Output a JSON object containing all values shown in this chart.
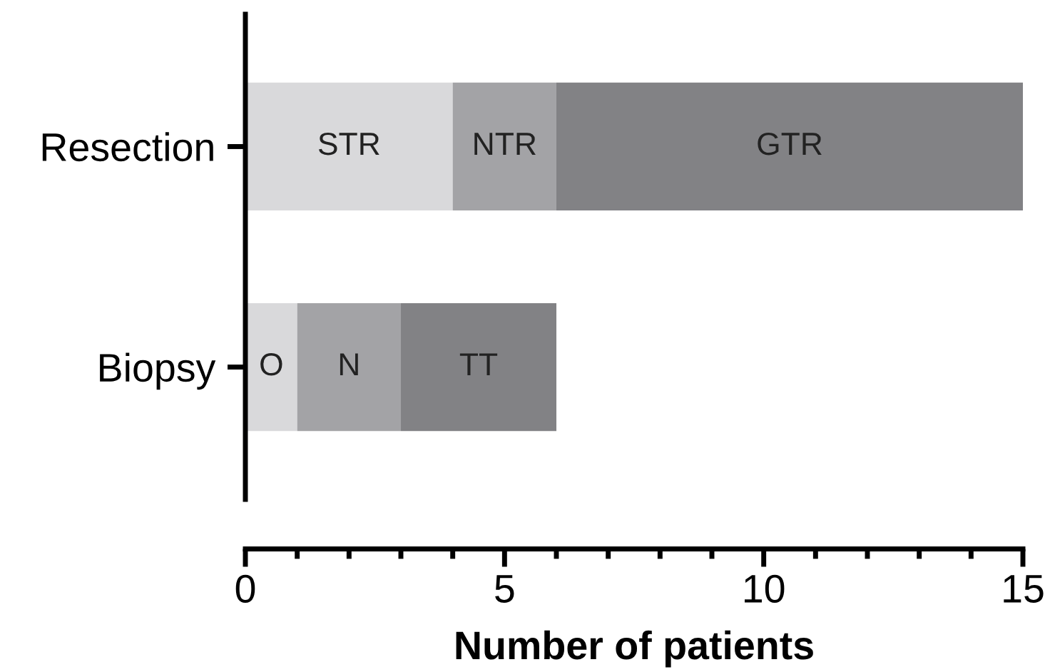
{
  "chart_data": {
    "type": "bar",
    "orientation": "horizontal",
    "stacked": true,
    "xlabel": "Number of patients",
    "categories": [
      "Resection",
      "Biopsy"
    ],
    "series": [
      {
        "color": "#d9d9db",
        "values": [
          4,
          1
        ],
        "value_labels": [
          "STR",
          "O"
        ]
      },
      {
        "color": "#a3a3a6",
        "values": [
          2,
          2
        ],
        "value_labels": [
          "NTR",
          "N"
        ]
      },
      {
        "color": "#828285",
        "values": [
          9,
          3
        ],
        "value_labels": [
          "GTR",
          "TT"
        ]
      }
    ],
    "xlim": [
      0,
      15
    ],
    "xticks": [
      0,
      5,
      10,
      15
    ],
    "grid": false,
    "legend": false
  }
}
